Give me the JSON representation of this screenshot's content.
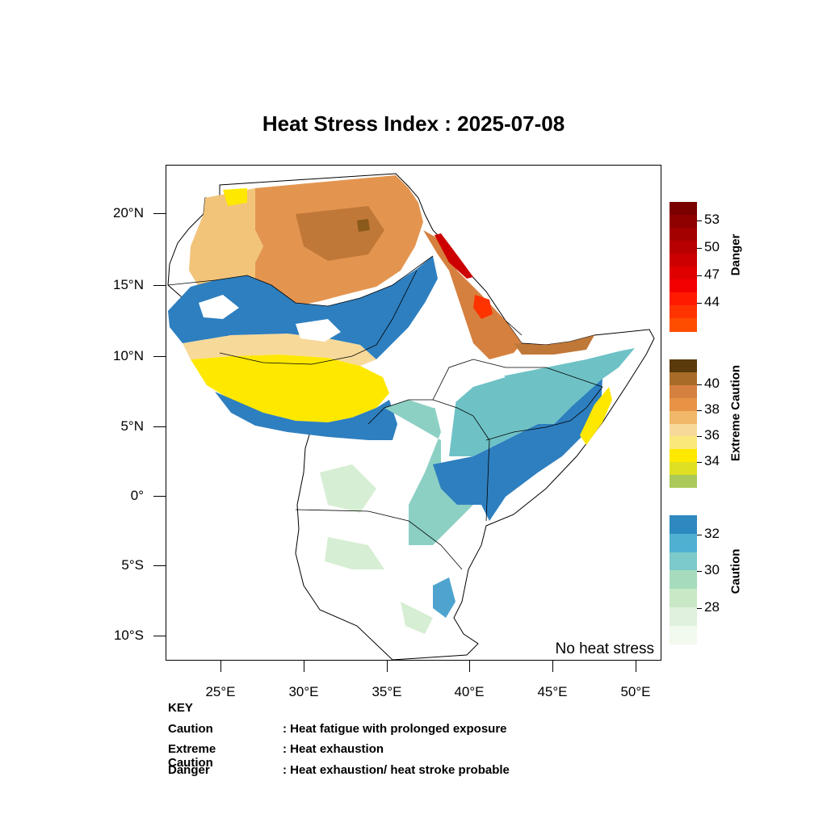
{
  "title": "Heat Stress Index : 2025-07-08",
  "map": {
    "lat_ticks": [
      "20°N",
      "15°N",
      "10°N",
      "5°N",
      "0°",
      "5°S",
      "10°S"
    ],
    "lon_ticks": [
      "25°E",
      "30°E",
      "35°E",
      "40°E",
      "45°E",
      "50°E"
    ],
    "no_heat_stress_label": "No heat stress"
  },
  "legend": {
    "danger": {
      "title": "Danger",
      "colors": [
        "#7a0000",
        "#8f0000",
        "#a30000",
        "#b80000",
        "#cc0000",
        "#e00000",
        "#f20000",
        "#ff1a00",
        "#ff3300",
        "#ff4d00"
      ],
      "tick_labels": [
        "53",
        "50",
        "47",
        "44"
      ]
    },
    "extreme": {
      "title": "Extreme Caution",
      "colors": [
        "#5a3a0a",
        "#a86c28",
        "#d6803f",
        "#e89245",
        "#f0b868",
        "#f7d99a",
        "#fbe87a",
        "#ffe800",
        "#dfe021",
        "#aac95a"
      ],
      "tick_labels": [
        "40",
        "38",
        "36",
        "34"
      ]
    },
    "caution": {
      "title": "Caution",
      "colors": [
        "#2e89c0",
        "#4fb0d2",
        "#7dcaca",
        "#a6dcbd",
        "#c8e8c6",
        "#e0f2de",
        "#f2f9ee"
      ],
      "tick_labels": [
        "32",
        "30",
        "28"
      ]
    }
  },
  "key": {
    "heading": "KEY",
    "rows": [
      {
        "term": "Caution",
        "desc": ": Heat fatigue with prolonged exposure"
      },
      {
        "term": "Extreme Caution",
        "desc": " : Heat exhaustion"
      },
      {
        "term": "Danger",
        "desc": ": Heat exhaustion/ heat stroke probable"
      }
    ]
  }
}
